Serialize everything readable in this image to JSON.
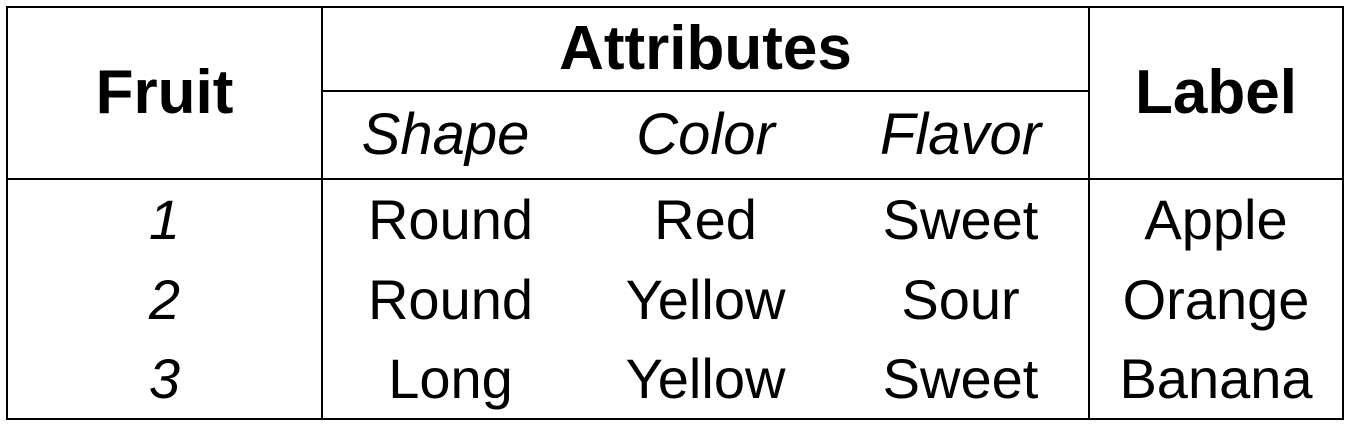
{
  "header": {
    "fruit": "Fruit",
    "attributes": "Attributes",
    "label": "Label",
    "sub": [
      "Shape",
      "Color",
      "Flavor"
    ]
  },
  "rows": [
    {
      "id": "1",
      "shape": "Round",
      "color": "Red",
      "flavor": "Sweet",
      "label": "Apple"
    },
    {
      "id": "2",
      "shape": "Round",
      "color": "Yellow",
      "flavor": "Sour",
      "label": "Orange"
    },
    {
      "id": "3",
      "shape": "Long",
      "color": "Yellow",
      "flavor": "Sweet",
      "label": "Banana"
    }
  ]
}
